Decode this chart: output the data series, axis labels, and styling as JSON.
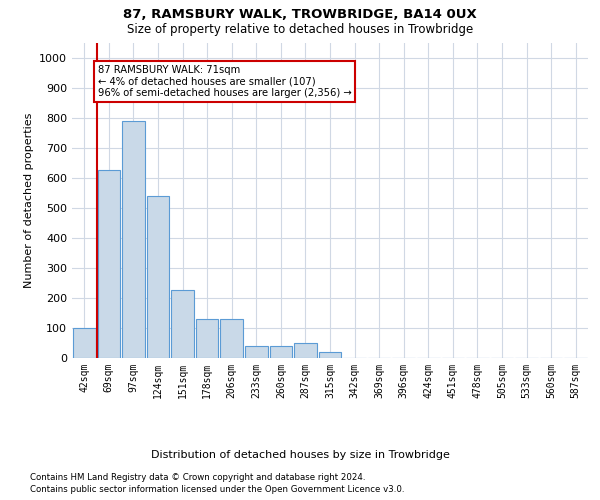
{
  "title1": "87, RAMSBURY WALK, TROWBRIDGE, BA14 0UX",
  "title2": "Size of property relative to detached houses in Trowbridge",
  "xlabel": "Distribution of detached houses by size in Trowbridge",
  "ylabel": "Number of detached properties",
  "bar_labels": [
    "42sqm",
    "69sqm",
    "97sqm",
    "124sqm",
    "151sqm",
    "178sqm",
    "206sqm",
    "233sqm",
    "260sqm",
    "287sqm",
    "315sqm",
    "342sqm",
    "369sqm",
    "396sqm",
    "424sqm",
    "451sqm",
    "478sqm",
    "505sqm",
    "533sqm",
    "560sqm",
    "587sqm"
  ],
  "bar_values": [
    100,
    625,
    790,
    540,
    225,
    130,
    130,
    40,
    40,
    50,
    20,
    0,
    0,
    0,
    0,
    0,
    0,
    0,
    0,
    0,
    0
  ],
  "bar_color": "#c9d9e8",
  "bar_edge_color": "#5b9bd5",
  "highlight_line_color": "#cc0000",
  "annotation_text": "87 RAMSBURY WALK: 71sqm\n← 4% of detached houses are smaller (107)\n96% of semi-detached houses are larger (2,356) →",
  "annotation_box_color": "#ffffff",
  "annotation_box_edge": "#cc0000",
  "ylim": [
    0,
    1050
  ],
  "yticks": [
    0,
    100,
    200,
    300,
    400,
    500,
    600,
    700,
    800,
    900,
    1000
  ],
  "footer1": "Contains HM Land Registry data © Crown copyright and database right 2024.",
  "footer2": "Contains public sector information licensed under the Open Government Licence v3.0.",
  "bg_color": "#ffffff",
  "grid_color": "#d0d8e4"
}
